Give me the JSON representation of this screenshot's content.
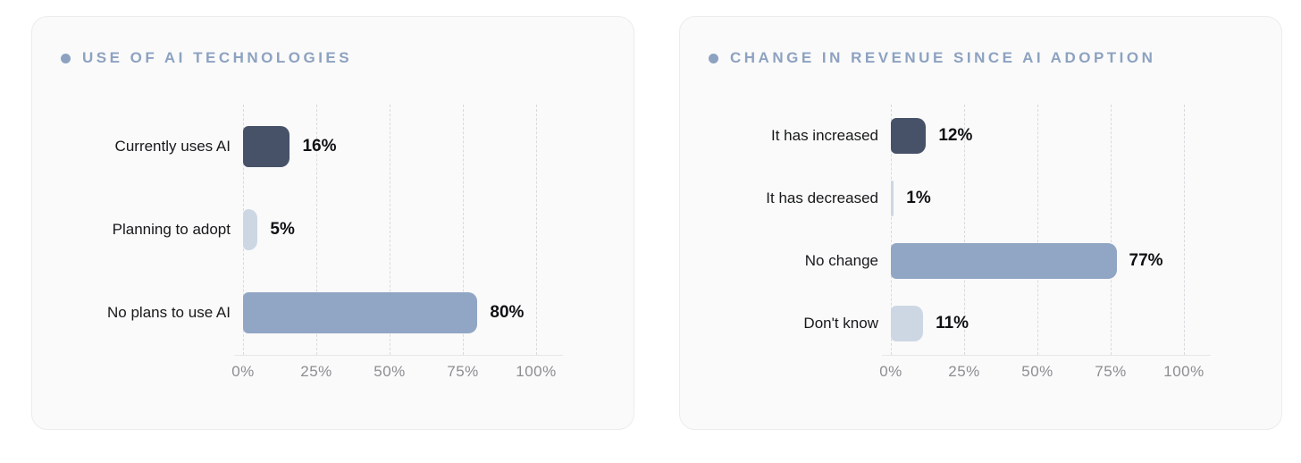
{
  "theme": {
    "page_background": "#ffffff",
    "card_background": "#fafafa",
    "card_border": "#ececef",
    "title_color": "#8da2c0",
    "category_color": "#17181a",
    "value_color": "#101114",
    "axis_label_color": "#8d8d92",
    "gridline_color": "#d8dade",
    "axis_line_color": "#e7e7ea",
    "bar_dark": "#475268",
    "bar_medium": "#91a6c4",
    "bar_light": "#cdd7e4"
  },
  "chart_data": [
    {
      "type": "bar",
      "orientation": "horizontal",
      "title": "USE OF AI TECHNOLOGIES",
      "categories": [
        "Currently uses AI",
        "Planning to adopt",
        "No plans to use AI"
      ],
      "values": [
        16,
        5,
        80
      ],
      "values_display": [
        "16%",
        "5%",
        "80%"
      ],
      "bar_colors": [
        "#475268",
        "#cdd7e4",
        "#91a6c4"
      ],
      "xlim": [
        0,
        100
      ],
      "x_ticks": [
        {
          "label": "0%",
          "value": 0
        },
        {
          "label": "25%",
          "value": 25
        },
        {
          "label": "50%",
          "value": 50
        },
        {
          "label": "75%",
          "value": 75
        },
        {
          "label": "100%",
          "value": 100
        }
      ],
      "grid": "dashed-vertical",
      "legend": "none"
    },
    {
      "type": "bar",
      "orientation": "horizontal",
      "title": "CHANGE IN REVENUE SINCE AI ADOPTION",
      "categories": [
        "It has increased",
        "It has decreased",
        "No change",
        "Don't know"
      ],
      "values": [
        12,
        1,
        77,
        11
      ],
      "values_display": [
        "12%",
        "1%",
        "77%",
        "11%"
      ],
      "bar_colors": [
        "#475268",
        "#cdd7e4",
        "#91a6c4",
        "#cdd7e4"
      ],
      "xlim": [
        0,
        100
      ],
      "x_ticks": [
        {
          "label": "0%",
          "value": 0
        },
        {
          "label": "25%",
          "value": 25
        },
        {
          "label": "50%",
          "value": 50
        },
        {
          "label": "75%",
          "value": 75
        },
        {
          "label": "100%",
          "value": 100
        }
      ],
      "grid": "dashed-vertical",
      "legend": "none"
    }
  ]
}
